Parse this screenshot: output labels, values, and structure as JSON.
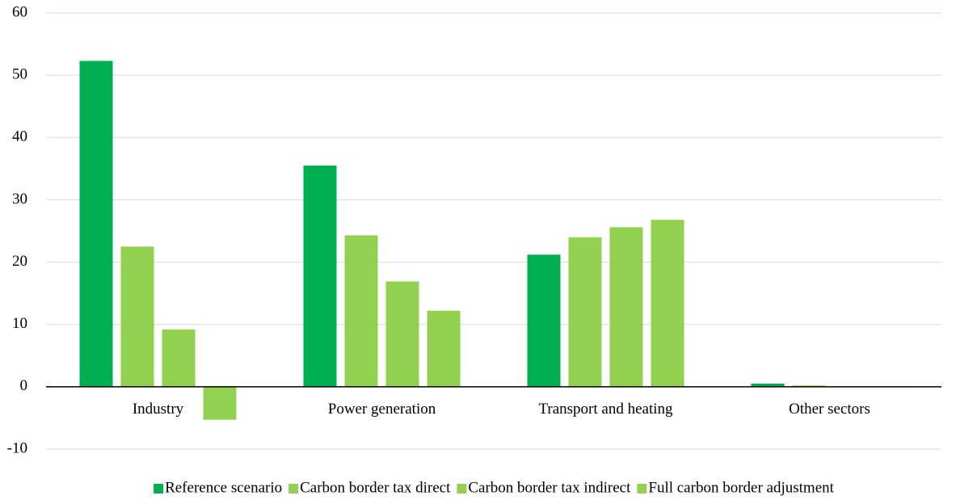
{
  "chart_data": {
    "type": "bar",
    "categories": [
      "Industry",
      "Power generation",
      "Transport and heating",
      "Other sectors"
    ],
    "series": [
      {
        "name": "Reference scenario",
        "color": "#00b050",
        "values": [
          52.3,
          35.5,
          21.2,
          0.5
        ]
      },
      {
        "name": "Carbon border tax direct",
        "color": "#92d050",
        "values": [
          22.5,
          24.3,
          24.0,
          0.2
        ]
      },
      {
        "name": "Carbon border tax indirect",
        "color": "#92d050",
        "values": [
          9.2,
          16.9,
          25.6,
          0.1
        ]
      },
      {
        "name": "Full carbon border adjustment",
        "color": "#92d050",
        "values": [
          -5.3,
          12.2,
          26.8,
          0.1
        ]
      }
    ],
    "ylim": [
      -10,
      60
    ],
    "yticks": [
      -10,
      0,
      10,
      20,
      30,
      40,
      50,
      60
    ],
    "grid": true,
    "legend": "bottom"
  }
}
